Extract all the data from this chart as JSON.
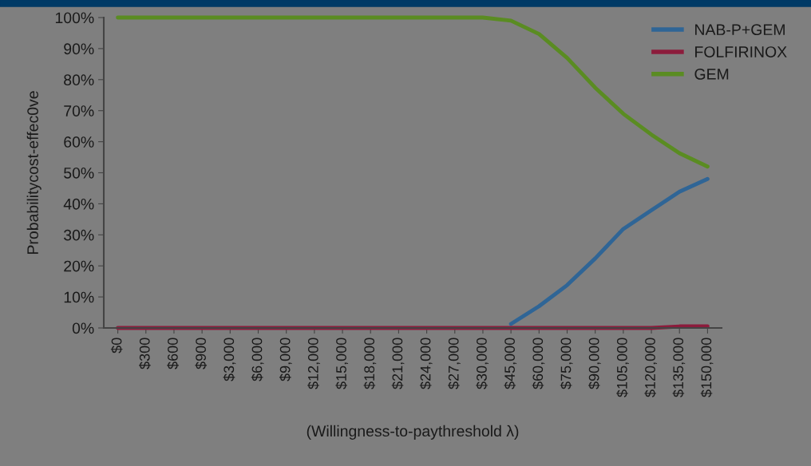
{
  "chart_data": {
    "type": "line",
    "xlabel": "(Willingness-to-paythreshold λ)",
    "ylabel": "Probabilitycost-effec0ve",
    "categories": [
      "$0",
      "$300",
      "$600",
      "$900",
      "$3,000",
      "$6,000",
      "$9,000",
      "$12,000",
      "$15,000",
      "$18,000",
      "$21,000",
      "$24,000",
      "$27,000",
      "$30,000",
      "$45,000",
      "$60,000",
      "$75,000",
      "$90,000",
      "$105,000",
      "$120,000",
      "$135,000",
      "$150,000"
    ],
    "series": [
      {
        "name": "NAB-P+GEM",
        "color": "#2f6596",
        "values": [
          null,
          null,
          null,
          null,
          null,
          null,
          null,
          null,
          null,
          null,
          null,
          null,
          null,
          null,
          1.3,
          7,
          13.8,
          22.4,
          31.9,
          37.9,
          43.9,
          48
        ]
      },
      {
        "name": "FOLFIRINOX",
        "color": "#8c1c3c",
        "values": [
          0,
          0,
          0,
          0,
          0,
          0,
          0,
          0,
          0,
          0,
          0,
          0,
          0,
          0,
          0,
          0,
          0,
          0,
          0,
          0,
          0.5,
          0.5
        ]
      },
      {
        "name": "GEM",
        "color": "#5a8c22",
        "values": [
          100,
          100,
          100,
          100,
          100,
          100,
          100,
          100,
          100,
          100,
          100,
          100,
          100,
          100,
          99,
          94.7,
          87,
          77.4,
          69,
          62.3,
          56.3,
          52
        ]
      }
    ],
    "ylim": [
      0,
      100
    ],
    "yticks": [
      {
        "value": 0,
        "label": "0%"
      },
      {
        "value": 10,
        "label": "10%"
      },
      {
        "value": 20,
        "label": "20%"
      },
      {
        "value": 30,
        "label": "30%"
      },
      {
        "value": 40,
        "label": "40%"
      },
      {
        "value": 50,
        "label": "50%"
      },
      {
        "value": 60,
        "label": "60%"
      },
      {
        "value": 70,
        "label": "70%"
      },
      {
        "value": 80,
        "label": "80%"
      },
      {
        "value": 90,
        "label": "90%"
      },
      {
        "value": 100,
        "label": "100%"
      }
    ],
    "grid": false,
    "legend": "top right",
    "marker": "none",
    "line_style": "solid"
  }
}
